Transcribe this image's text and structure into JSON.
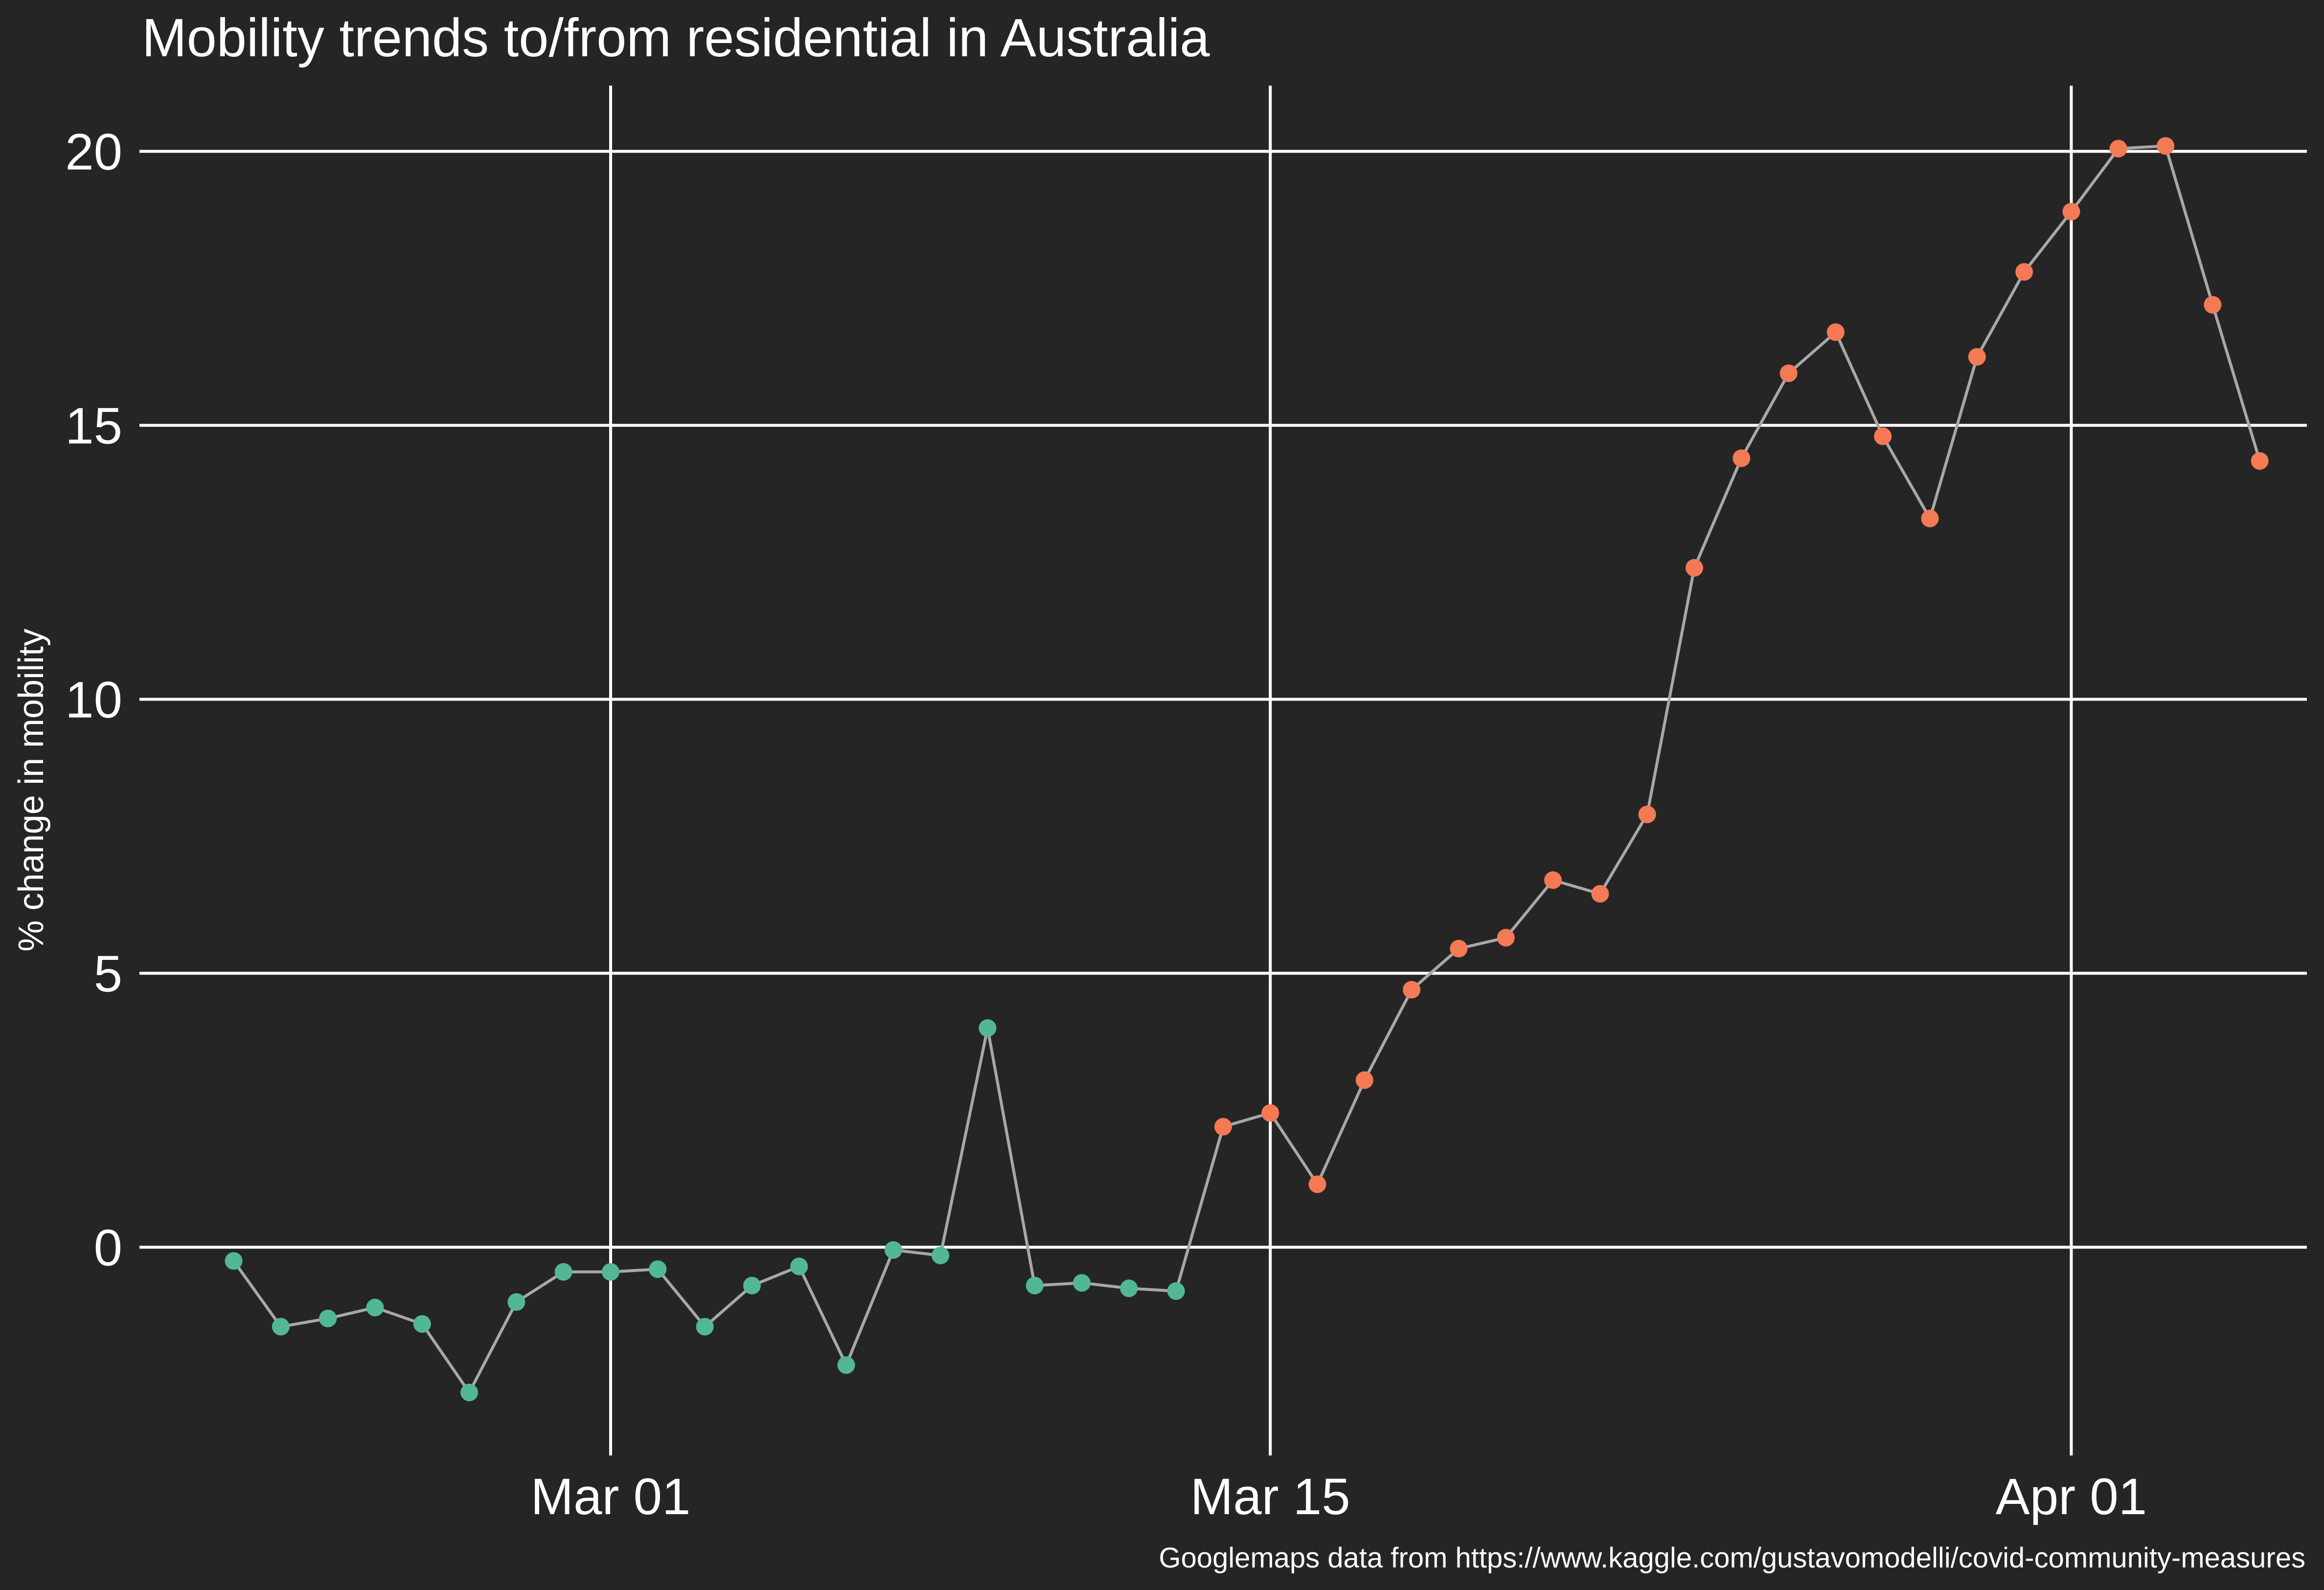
{
  "chart_data": {
    "type": "line",
    "title": "Mobility trends to/from residential in Australia",
    "xlabel": "",
    "ylabel": "% change in mobility",
    "caption": "Googlemaps data from https://www.kaggle.com/gustavomodelli/covid-community-measures",
    "x_ticks": [
      {
        "date": "2020-03-01",
        "label": "Mar 01"
      },
      {
        "date": "2020-03-15",
        "label": "Mar 15"
      },
      {
        "date": "2020-04-01",
        "label": "Apr 01"
      }
    ],
    "y_ticks": [
      0,
      5,
      10,
      15,
      20
    ],
    "xlim": [
      "2020-02-20",
      "2020-04-06"
    ],
    "ylim": [
      -3.8,
      21.2
    ],
    "grid": true,
    "legend": "none",
    "colors": {
      "background": "#252525",
      "line": "#a8a8a8",
      "low": "#52b893",
      "high": "#f47a55",
      "grid": "#ffffff",
      "text": "#ffffff"
    },
    "color_rule": "points up to 2020-03-13 in low color, from 2020-03-14 in high color",
    "points": [
      {
        "date": "2020-02-22",
        "value": -0.25
      },
      {
        "date": "2020-02-23",
        "value": -1.45
      },
      {
        "date": "2020-02-24",
        "value": -1.3
      },
      {
        "date": "2020-02-25",
        "value": -1.1
      },
      {
        "date": "2020-02-26",
        "value": -1.4
      },
      {
        "date": "2020-02-27",
        "value": -2.65
      },
      {
        "date": "2020-02-28",
        "value": -1.0
      },
      {
        "date": "2020-02-29",
        "value": -0.45
      },
      {
        "date": "2020-03-01",
        "value": -0.45
      },
      {
        "date": "2020-03-02",
        "value": -0.4
      },
      {
        "date": "2020-03-03",
        "value": -1.45
      },
      {
        "date": "2020-03-04",
        "value": -0.7
      },
      {
        "date": "2020-03-05",
        "value": -0.35
      },
      {
        "date": "2020-03-06",
        "value": -2.15
      },
      {
        "date": "2020-03-07",
        "value": -0.05
      },
      {
        "date": "2020-03-08",
        "value": -0.15
      },
      {
        "date": "2020-03-09",
        "value": 4.0
      },
      {
        "date": "2020-03-10",
        "value": -0.7
      },
      {
        "date": "2020-03-11",
        "value": -0.65
      },
      {
        "date": "2020-03-12",
        "value": -0.75
      },
      {
        "date": "2020-03-13",
        "value": -0.8
      },
      {
        "date": "2020-03-14",
        "value": 2.2
      },
      {
        "date": "2020-03-15",
        "value": 2.45
      },
      {
        "date": "2020-03-16",
        "value": 1.15
      },
      {
        "date": "2020-03-17",
        "value": 3.05
      },
      {
        "date": "2020-03-18",
        "value": 4.7
      },
      {
        "date": "2020-03-19",
        "value": 5.45
      },
      {
        "date": "2020-03-20",
        "value": 5.65
      },
      {
        "date": "2020-03-21",
        "value": 6.7
      },
      {
        "date": "2020-03-22",
        "value": 6.45
      },
      {
        "date": "2020-03-23",
        "value": 7.9
      },
      {
        "date": "2020-03-24",
        "value": 12.4
      },
      {
        "date": "2020-03-25",
        "value": 14.4
      },
      {
        "date": "2020-03-26",
        "value": 15.95
      },
      {
        "date": "2020-03-27",
        "value": 16.7
      },
      {
        "date": "2020-03-28",
        "value": 14.8
      },
      {
        "date": "2020-03-29",
        "value": 13.3
      },
      {
        "date": "2020-03-30",
        "value": 16.25
      },
      {
        "date": "2020-03-31",
        "value": 17.8
      },
      {
        "date": "2020-04-01",
        "value": 18.9
      },
      {
        "date": "2020-04-02",
        "value": 20.05
      },
      {
        "date": "2020-04-03",
        "value": 20.1
      },
      {
        "date": "2020-04-04",
        "value": 17.2
      },
      {
        "date": "2020-04-05",
        "value": 14.35
      }
    ]
  }
}
